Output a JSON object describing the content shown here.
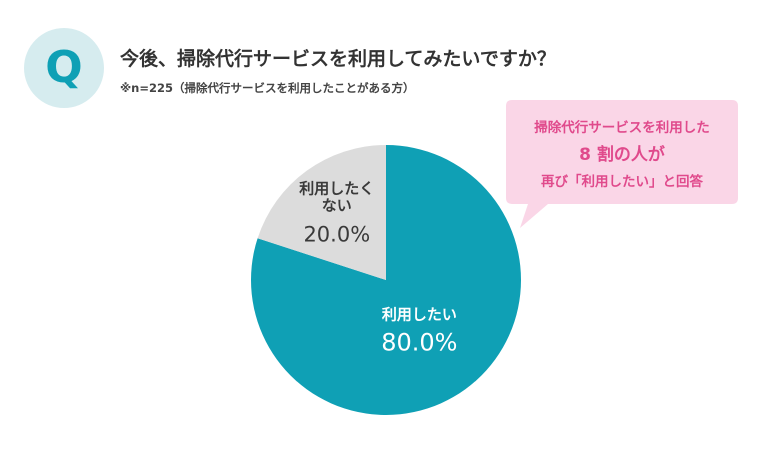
{
  "header": {
    "badge": "Q",
    "question": "今後、掃除代行サービスを利用してみたいですか？",
    "note": "※n=225（掃除代行サービスを利用したことがある方）"
  },
  "callout": {
    "line1": "掃除代行サービスを利用した",
    "line2": "8 割の人が",
    "line3": "再び「利用したい」と回答",
    "text_color": "#e04a8c",
    "bg_color": "#fad6e7"
  },
  "colors": {
    "badge_bg": "#d6ecef",
    "badge_text": "#0fa0b5",
    "slice_main": "#0fa0b5",
    "slice_other": "#dcdcdc"
  },
  "chart_data": {
    "type": "pie",
    "slices": [
      {
        "label": "利用したい",
        "value": 80.0,
        "value_label": "80.0%",
        "color": "#0fa0b5"
      },
      {
        "label_lines": [
          "利用したく",
          "ない"
        ],
        "value": 20.0,
        "value_label": "20.0%",
        "color": "#dcdcdc"
      }
    ]
  }
}
